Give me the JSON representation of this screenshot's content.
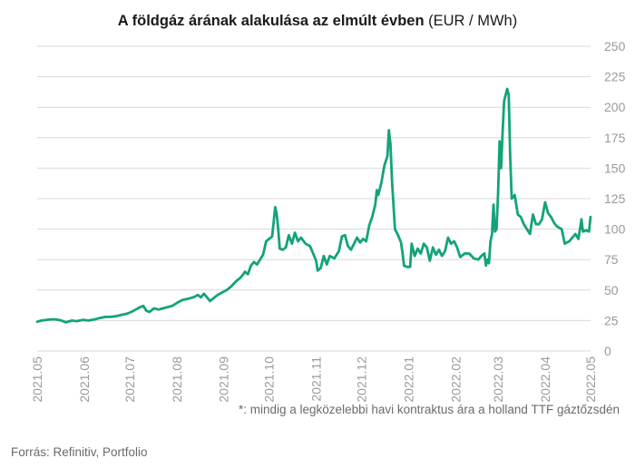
{
  "title": {
    "main": "A földgáz árának alakulása az elmúlt évben",
    "unit": "(EUR / MWh)"
  },
  "footnote": "*: mindig a legközelebbi havi kontraktus ára a holland TTF gáztőzsdén",
  "source": "Forrás: Refinitiv, Portfolio",
  "colors": {
    "line": "#13a37b",
    "grid": "#d9d9d9",
    "axis_text": "#9a9a9a"
  },
  "chart_data": {
    "type": "line",
    "title": "A földgáz árának alakulása az elmúlt évben (EUR / MWh)",
    "xlabel": "",
    "ylabel": "",
    "ylim": [
      0,
      250
    ],
    "yticks": [
      0,
      25,
      50,
      75,
      100,
      125,
      150,
      175,
      200,
      225,
      250
    ],
    "grid": true,
    "y_axis_position": "right",
    "x_tick_labels": [
      "2021.05",
      "2021.06",
      "2021.07",
      "2021.08",
      "2021.09",
      "2021.10",
      "2021.11",
      "2021.12",
      "2022.01",
      "2022.02",
      "2022.03",
      "2022.04",
      "2022.05"
    ],
    "x_tick_dates": [
      "2021-05-01",
      "2021-06-01",
      "2021-07-01",
      "2021-08-01",
      "2021-09-01",
      "2021-10-01",
      "2021-11-01",
      "2021-12-01",
      "2022-01-01",
      "2022-02-01",
      "2022-03-01",
      "2022-04-01",
      "2022-05-01"
    ],
    "series": [
      {
        "name": "",
        "points": [
          [
            "2021-05-01",
            24
          ],
          [
            "2021-05-04",
            25
          ],
          [
            "2021-05-07",
            25.5
          ],
          [
            "2021-05-10",
            26
          ],
          [
            "2021-05-13",
            26
          ],
          [
            "2021-05-17",
            25
          ],
          [
            "2021-05-20",
            23.5
          ],
          [
            "2021-05-24",
            25
          ],
          [
            "2021-05-27",
            24.5
          ],
          [
            "2021-05-31",
            25.5
          ],
          [
            "2021-06-04",
            25
          ],
          [
            "2021-06-08",
            26
          ],
          [
            "2021-06-11",
            27
          ],
          [
            "2021-06-15",
            28
          ],
          [
            "2021-06-18",
            28
          ],
          [
            "2021-06-22",
            28.5
          ],
          [
            "2021-06-25",
            29.5
          ],
          [
            "2021-06-29",
            30.5
          ],
          [
            "2021-07-02",
            32
          ],
          [
            "2021-07-05",
            34
          ],
          [
            "2021-07-08",
            36
          ],
          [
            "2021-07-10",
            37
          ],
          [
            "2021-07-12",
            33
          ],
          [
            "2021-07-14",
            32
          ],
          [
            "2021-07-17",
            35
          ],
          [
            "2021-07-20",
            34
          ],
          [
            "2021-07-23",
            35
          ],
          [
            "2021-07-26",
            36
          ],
          [
            "2021-07-29",
            37
          ],
          [
            "2021-08-02",
            40
          ],
          [
            "2021-08-05",
            42
          ],
          [
            "2021-08-09",
            43
          ],
          [
            "2021-08-12",
            44
          ],
          [
            "2021-08-15",
            46
          ],
          [
            "2021-08-17",
            44
          ],
          [
            "2021-08-19",
            47
          ],
          [
            "2021-08-21",
            44
          ],
          [
            "2021-08-23",
            41
          ],
          [
            "2021-08-25",
            43
          ],
          [
            "2021-08-28",
            46
          ],
          [
            "2021-08-31",
            48
          ],
          [
            "2021-09-03",
            50
          ],
          [
            "2021-09-06",
            53
          ],
          [
            "2021-09-09",
            57
          ],
          [
            "2021-09-12",
            60
          ],
          [
            "2021-09-14",
            63
          ],
          [
            "2021-09-15",
            65
          ],
          [
            "2021-09-17",
            63
          ],
          [
            "2021-09-19",
            70
          ],
          [
            "2021-09-21",
            73
          ],
          [
            "2021-09-23",
            71
          ],
          [
            "2021-09-25",
            75
          ],
          [
            "2021-09-27",
            79
          ],
          [
            "2021-09-29",
            90
          ],
          [
            "2021-10-01",
            92
          ],
          [
            "2021-10-03",
            94
          ],
          [
            "2021-10-05",
            118
          ],
          [
            "2021-10-06",
            112
          ],
          [
            "2021-10-07",
            100
          ],
          [
            "2021-10-08",
            84
          ],
          [
            "2021-10-10",
            83
          ],
          [
            "2021-10-12",
            85
          ],
          [
            "2021-10-14",
            95
          ],
          [
            "2021-10-16",
            88
          ],
          [
            "2021-10-18",
            97
          ],
          [
            "2021-10-20",
            90
          ],
          [
            "2021-10-22",
            93
          ],
          [
            "2021-10-25",
            88
          ],
          [
            "2021-10-28",
            86
          ],
          [
            "2021-10-30",
            80
          ],
          [
            "2021-11-01",
            74
          ],
          [
            "2021-11-02",
            66
          ],
          [
            "2021-11-04",
            68
          ],
          [
            "2021-11-06",
            78
          ],
          [
            "2021-11-08",
            71
          ],
          [
            "2021-11-10",
            78
          ],
          [
            "2021-11-13",
            76
          ],
          [
            "2021-11-16",
            82
          ],
          [
            "2021-11-18",
            94
          ],
          [
            "2021-11-20",
            95
          ],
          [
            "2021-11-22",
            86
          ],
          [
            "2021-11-24",
            83
          ],
          [
            "2021-11-26",
            88
          ],
          [
            "2021-11-28",
            93
          ],
          [
            "2021-11-30",
            89
          ],
          [
            "2021-12-02",
            92
          ],
          [
            "2021-12-04",
            90
          ],
          [
            "2021-12-06",
            103
          ],
          [
            "2021-12-08",
            110
          ],
          [
            "2021-12-10",
            120
          ],
          [
            "2021-12-11",
            132
          ],
          [
            "2021-12-12",
            128
          ],
          [
            "2021-12-14",
            138
          ],
          [
            "2021-12-16",
            152
          ],
          [
            "2021-12-18",
            160
          ],
          [
            "2021-12-19",
            181
          ],
          [
            "2021-12-20",
            170
          ],
          [
            "2021-12-21",
            140
          ],
          [
            "2021-12-23",
            100
          ],
          [
            "2021-12-25",
            95
          ],
          [
            "2021-12-27",
            89
          ],
          [
            "2021-12-28",
            80
          ],
          [
            "2021-12-29",
            70
          ],
          [
            "2021-12-31",
            69
          ],
          [
            "2022-01-02",
            69
          ],
          [
            "2022-01-03",
            88
          ],
          [
            "2022-01-05",
            78
          ],
          [
            "2022-01-07",
            84
          ],
          [
            "2022-01-09",
            80
          ],
          [
            "2022-01-11",
            88
          ],
          [
            "2022-01-13",
            85
          ],
          [
            "2022-01-15",
            74
          ],
          [
            "2022-01-17",
            85
          ],
          [
            "2022-01-19",
            79
          ],
          [
            "2022-01-21",
            83
          ],
          [
            "2022-01-23",
            78
          ],
          [
            "2022-01-25",
            82
          ],
          [
            "2022-01-27",
            93
          ],
          [
            "2022-01-29",
            88
          ],
          [
            "2022-01-31",
            90
          ],
          [
            "2022-02-02",
            85
          ],
          [
            "2022-02-04",
            77
          ],
          [
            "2022-02-07",
            80
          ],
          [
            "2022-02-10",
            80
          ],
          [
            "2022-02-13",
            76
          ],
          [
            "2022-02-16",
            75
          ],
          [
            "2022-02-18",
            78
          ],
          [
            "2022-02-20",
            80
          ],
          [
            "2022-02-21",
            70
          ],
          [
            "2022-02-22",
            75
          ],
          [
            "2022-02-23",
            72
          ],
          [
            "2022-02-24",
            90
          ],
          [
            "2022-02-25",
            96
          ],
          [
            "2022-02-26",
            120
          ],
          [
            "2022-02-27",
            98
          ],
          [
            "2022-02-28",
            100
          ],
          [
            "2022-03-01",
            130
          ],
          [
            "2022-03-02",
            172
          ],
          [
            "2022-03-03",
            150
          ],
          [
            "2022-03-04",
            180
          ],
          [
            "2022-03-05",
            205
          ],
          [
            "2022-03-07",
            215
          ],
          [
            "2022-03-08",
            210
          ],
          [
            "2022-03-09",
            160
          ],
          [
            "2022-03-10",
            125
          ],
          [
            "2022-03-12",
            128
          ],
          [
            "2022-03-14",
            112
          ],
          [
            "2022-03-16",
            110
          ],
          [
            "2022-03-18",
            104
          ],
          [
            "2022-03-20",
            100
          ],
          [
            "2022-03-22",
            96
          ],
          [
            "2022-03-24",
            112
          ],
          [
            "2022-03-26",
            104
          ],
          [
            "2022-03-28",
            104
          ],
          [
            "2022-03-30",
            108
          ],
          [
            "2022-04-01",
            122
          ],
          [
            "2022-04-03",
            113
          ],
          [
            "2022-04-05",
            110
          ],
          [
            "2022-04-07",
            105
          ],
          [
            "2022-04-09",
            102
          ],
          [
            "2022-04-12",
            100
          ],
          [
            "2022-04-14",
            88
          ],
          [
            "2022-04-17",
            90
          ],
          [
            "2022-04-19",
            93
          ],
          [
            "2022-04-21",
            96
          ],
          [
            "2022-04-23",
            92
          ],
          [
            "2022-04-25",
            108
          ],
          [
            "2022-04-26",
            98
          ],
          [
            "2022-04-28",
            99
          ],
          [
            "2022-04-30",
            98
          ],
          [
            "2022-05-01",
            110
          ]
        ]
      }
    ]
  }
}
